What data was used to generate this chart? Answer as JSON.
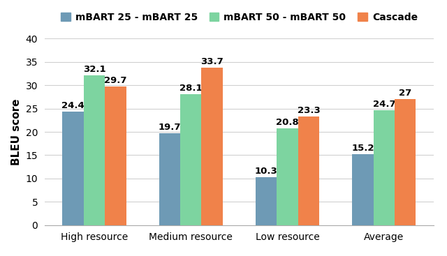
{
  "categories": [
    "High resource",
    "Medium resource",
    "Low resource",
    "Average"
  ],
  "series": [
    {
      "label": "mBART 25 - mBART 25",
      "values": [
        24.4,
        19.7,
        10.3,
        15.2
      ],
      "color": "#6e9ab5"
    },
    {
      "label": "mBART 50 - mBART 50",
      "values": [
        32.1,
        28.1,
        20.8,
        24.7
      ],
      "color": "#7dd4a0"
    },
    {
      "label": "Cascade",
      "values": [
        29.7,
        33.7,
        23.3,
        27.0
      ],
      "color": "#f0824a"
    }
  ],
  "ylabel": "BLEU score",
  "ylim": [
    0,
    40
  ],
  "yticks": [
    0,
    5,
    10,
    15,
    20,
    25,
    30,
    35,
    40
  ],
  "bar_width": 0.22,
  "label_fontsize": 9.5,
  "tick_fontsize": 10,
  "legend_fontsize": 10,
  "ylabel_fontsize": 11,
  "background_color": "#ffffff",
  "grid_color": "#d0d0d0"
}
